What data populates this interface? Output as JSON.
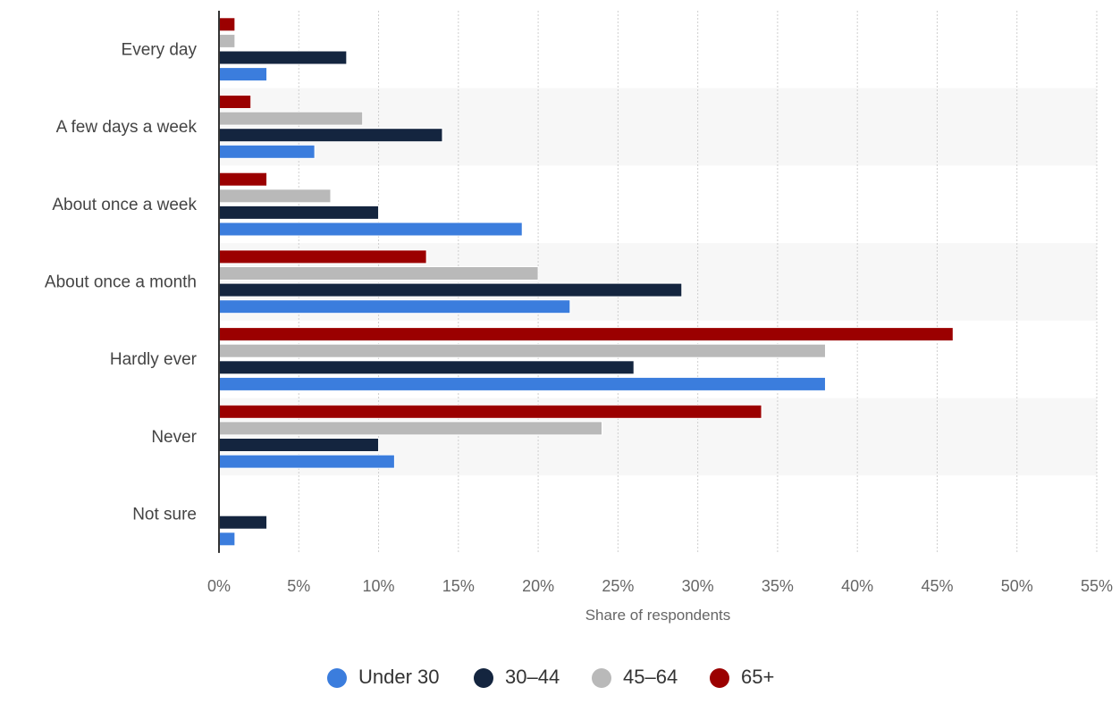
{
  "chart_data": {
    "type": "bar",
    "orientation": "horizontal",
    "categories": [
      "Every day",
      "A few days a week",
      "About once a week",
      "About once a month",
      "Hardly ever",
      "Never",
      "Not sure"
    ],
    "series": [
      {
        "name": "Under 30",
        "color": "#3b7ddd",
        "values": [
          3,
          6,
          19,
          22,
          38,
          11,
          1
        ]
      },
      {
        "name": "30-44",
        "color": "#14253f",
        "values": [
          8,
          14,
          10,
          29,
          26,
          10,
          3
        ]
      },
      {
        "name": "45-64",
        "color": "#b9b9b9",
        "values": [
          1,
          9,
          7,
          20,
          38,
          24,
          0
        ]
      },
      {
        "name": "65+",
        "color": "#9b0000",
        "values": [
          1,
          2,
          3,
          13,
          46,
          34,
          0
        ]
      }
    ],
    "xlabel": "Share of respondents",
    "ylabel": "",
    "xlim": [
      0,
      55
    ],
    "xticks": [
      0,
      5,
      10,
      15,
      20,
      25,
      30,
      35,
      40,
      45,
      50,
      55
    ],
    "xtick_labels": [
      "0%",
      "5%",
      "10%",
      "15%",
      "20%",
      "25%",
      "30%",
      "35%",
      "40%",
      "45%",
      "50%",
      "55%"
    ],
    "grid": "vertical dotted",
    "legend_position": "bottom-center"
  }
}
